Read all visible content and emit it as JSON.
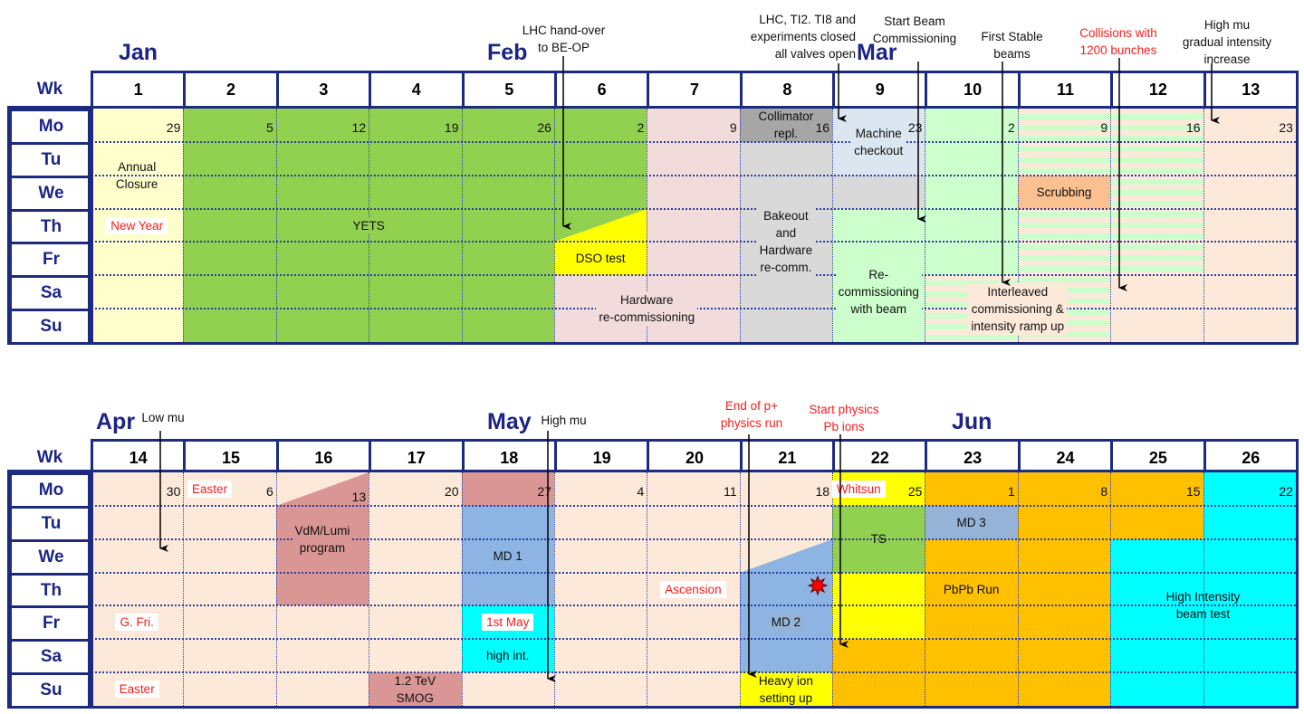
{
  "day_labels": [
    "Mo",
    "Tu",
    "We",
    "Th",
    "Fr",
    "Sa",
    "Su"
  ],
  "week_label": "Wk",
  "colors": {
    "navy": "#1c2a80",
    "annual_closure": "#ffffcc",
    "yets": "#92d050",
    "dso_test": "#ffff00",
    "hardware_recommissioning": "#f2dcdb",
    "collimator": "#a6a6a6",
    "bakeout": "#d9d9d9",
    "machine_checkout": "#dce6f1",
    "recommissioning_beam": "#ccffcc",
    "physics": "#fde9d9",
    "scrubbing": "#fac090",
    "special_run": "#da9694",
    "md": "#8db4e2",
    "md3": "#95b3d7",
    "high_intensity": "#00ffff",
    "ion_run": "#ffc000",
    "ts": "#92d050",
    "holiday_text": "#ff1a1a"
  },
  "calendars": [
    {
      "months": [
        {
          "label": "Jan"
        },
        {
          "label": "Feb"
        },
        {
          "label": "Mar"
        }
      ],
      "weeks": [
        "1",
        "2",
        "3",
        "4",
        "5",
        "6",
        "7",
        "8",
        "9",
        "10",
        "11",
        "12",
        "13"
      ],
      "monday_dates": [
        "29",
        "5",
        "12",
        "19",
        "26",
        "2",
        "9",
        "16",
        "23",
        "2",
        "9",
        "16",
        "23"
      ],
      "blocks": [
        {
          "w": [
            1,
            1
          ],
          "d": [
            0,
            6
          ],
          "color": "#ffffcc"
        },
        {
          "w": [
            2,
            5
          ],
          "d": [
            0,
            6
          ],
          "color": "#92d050"
        },
        {
          "w": [
            6,
            6
          ],
          "d": [
            0,
            2
          ],
          "color": "#92d050"
        },
        {
          "w": [
            6,
            6
          ],
          "d": [
            3,
            3
          ],
          "color": "#92d050",
          "triangle": "#ffff00"
        },
        {
          "w": [
            6,
            6
          ],
          "d": [
            4,
            4
          ],
          "color": "#ffff00"
        },
        {
          "w": [
            6,
            6
          ],
          "d": [
            5,
            6
          ],
          "color": "#f2dcdb"
        },
        {
          "w": [
            7,
            7
          ],
          "d": [
            0,
            6
          ],
          "color": "#f2dcdb"
        },
        {
          "w": [
            8,
            8
          ],
          "d": [
            0,
            0
          ],
          "color": "#a6a6a6"
        },
        {
          "w": [
            8,
            8
          ],
          "d": [
            1,
            6
          ],
          "color": "#d9d9d9"
        },
        {
          "w": [
            9,
            9
          ],
          "d": [
            0,
            1
          ],
          "color": "#dce6f1"
        },
        {
          "w": [
            9,
            9
          ],
          "d": [
            2,
            2
          ],
          "color": "#d9d9d9"
        },
        {
          "w": [
            9,
            9
          ],
          "d": [
            3,
            6
          ],
          "color": "#ccffcc"
        },
        {
          "w": [
            10,
            10
          ],
          "d": [
            0,
            4
          ],
          "color": "#ccffcc"
        },
        {
          "w": [
            10,
            10
          ],
          "d": [
            5,
            6
          ],
          "color": "#fde9d9",
          "stripes": "#ccffcc"
        },
        {
          "w": [
            11,
            11
          ],
          "d": [
            0,
            6
          ],
          "color": "#fde9d9",
          "stripes": "#ccffcc"
        },
        {
          "w": [
            12,
            12
          ],
          "d": [
            0,
            4
          ],
          "color": "#fde9d9",
          "stripes": "#ccffcc"
        },
        {
          "w": [
            11,
            11
          ],
          "d": [
            2,
            2
          ],
          "color": "#fac090"
        },
        {
          "w": [
            12,
            12
          ],
          "d": [
            5,
            6
          ],
          "color": "#fde9d9"
        },
        {
          "w": [
            13,
            13
          ],
          "d": [
            0,
            6
          ],
          "color": "#fde9d9"
        }
      ],
      "labels": [
        {
          "text": "Annual\nClosure",
          "w": [
            1,
            1
          ],
          "d": [
            1,
            2
          ]
        },
        {
          "text": "YETS",
          "w": [
            2,
            5
          ],
          "d": [
            3,
            3
          ],
          "bg": "#92d050"
        },
        {
          "text": "DSO test",
          "w": [
            6,
            6
          ],
          "d": [
            4,
            4
          ]
        },
        {
          "text": "Hardware\nre-commissioning",
          "w": [
            6,
            7
          ],
          "d": [
            5,
            6
          ],
          "bg": "#f2dcdb"
        },
        {
          "text": "Collimator\nrepl.",
          "w": [
            8,
            8
          ],
          "d": [
            0,
            0
          ]
        },
        {
          "text": "Bakeout\nand\nHardware\nre-comm.",
          "w": [
            8,
            8
          ],
          "d": [
            3,
            4
          ],
          "bg": "#d9d9d9"
        },
        {
          "text": "Machine\ncheckout",
          "w": [
            9,
            9
          ],
          "d": [
            0,
            1
          ],
          "bg": "#dce6f1"
        },
        {
          "text": "Re-\ncommissioning\nwith beam",
          "w": [
            9,
            9
          ],
          "d": [
            4,
            6
          ],
          "bg": "#ccffcc"
        },
        {
          "text": "Scrubbing",
          "w": [
            11,
            11
          ],
          "d": [
            2,
            2
          ]
        },
        {
          "text": "Interleaved\ncommissioning &\nintensity ramp up",
          "w": [
            10,
            11
          ],
          "d": [
            5,
            6
          ],
          "bg": "#fde9d9"
        }
      ],
      "holidays": [
        {
          "text": "New Year",
          "w": 1,
          "d": 3
        }
      ],
      "annotations": [
        {
          "text": "LHC hand-over\nto BE-OP",
          "color": "black"
        },
        {
          "text": "LHC, TI2. TI8 and\nexperiments closed\nall valves open",
          "color": "black"
        },
        {
          "text": "Start Beam\nCommissioning",
          "color": "black"
        },
        {
          "text": "First Stable\nbeams",
          "color": "black"
        },
        {
          "text": "Collisions with\n1200 bunches",
          "color": "red"
        },
        {
          "text": "High mu\ngradual intensity\nincrease",
          "color": "black"
        }
      ]
    },
    {
      "months": [
        {
          "label": "Apr"
        },
        {
          "label": "May"
        },
        {
          "label": "Jun"
        }
      ],
      "weeks": [
        "14",
        "15",
        "16",
        "17",
        "18",
        "19",
        "20",
        "21",
        "22",
        "23",
        "24",
        "25",
        "26"
      ],
      "monday_dates": [
        "30",
        "6",
        "13",
        "20",
        "27",
        "4",
        "11",
        "18",
        "25",
        "1",
        "8",
        "15",
        "22"
      ],
      "blocks": [
        {
          "w": [
            14,
            26
          ],
          "d": [
            0,
            6
          ],
          "color": "#fde9d9"
        },
        {
          "w": [
            16,
            16
          ],
          "d": [
            0,
            0
          ],
          "color": "#fde9d9",
          "triangle": "#da9694"
        },
        {
          "w": [
            16,
            16
          ],
          "d": [
            1,
            3
          ],
          "color": "#da9694"
        },
        {
          "w": [
            17,
            17
          ],
          "d": [
            6,
            6
          ],
          "color": "#da9694"
        },
        {
          "w": [
            18,
            18
          ],
          "d": [
            0,
            0
          ],
          "color": "#da9694"
        },
        {
          "w": [
            18,
            18
          ],
          "d": [
            1,
            3
          ],
          "color": "#8db4e2"
        },
        {
          "w": [
            18,
            18
          ],
          "d": [
            4,
            5
          ],
          "color": "#00ffff"
        },
        {
          "w": [
            21,
            21
          ],
          "d": [
            2,
            2
          ],
          "color": "#fde9d9",
          "triangle": "#8db4e2"
        },
        {
          "w": [
            21,
            21
          ],
          "d": [
            3,
            5
          ],
          "color": "#8db4e2"
        },
        {
          "w": [
            21,
            21
          ],
          "d": [
            6,
            6
          ],
          "color": "#ffff00"
        },
        {
          "w": [
            22,
            22
          ],
          "d": [
            0,
            0
          ],
          "color": "#ffff00"
        },
        {
          "w": [
            22,
            22
          ],
          "d": [
            1,
            2
          ],
          "color": "#92d050"
        },
        {
          "w": [
            22,
            22
          ],
          "d": [
            3,
            4
          ],
          "color": "#ffff00"
        },
        {
          "w": [
            22,
            22
          ],
          "d": [
            5,
            6
          ],
          "color": "#ffc000"
        },
        {
          "w": [
            23,
            23
          ],
          "d": [
            0,
            0
          ],
          "color": "#ffc000"
        },
        {
          "w": [
            23,
            23
          ],
          "d": [
            1,
            1
          ],
          "color": "#95b3d7"
        },
        {
          "w": [
            23,
            23
          ],
          "d": [
            2,
            6
          ],
          "color": "#ffc000"
        },
        {
          "w": [
            24,
            24
          ],
          "d": [
            0,
            6
          ],
          "color": "#ffc000"
        },
        {
          "w": [
            25,
            25
          ],
          "d": [
            0,
            1
          ],
          "color": "#ffc000"
        },
        {
          "w": [
            25,
            25
          ],
          "d": [
            2,
            6
          ],
          "color": "#00ffff"
        },
        {
          "w": [
            26,
            26
          ],
          "d": [
            0,
            6
          ],
          "color": "#00ffff"
        }
      ],
      "labels": [
        {
          "text": "VdM/Lumi\nprogram",
          "w": [
            16,
            16
          ],
          "d": [
            1,
            2
          ],
          "bg": "#da9694"
        },
        {
          "text": "MD 1",
          "w": [
            18,
            18
          ],
          "d": [
            2,
            2
          ]
        },
        {
          "text": "high int.",
          "w": [
            18,
            18
          ],
          "d": [
            5,
            5
          ]
        },
        {
          "text": "1.2 TeV\nSMOG",
          "w": [
            17,
            17
          ],
          "d": [
            6,
            6
          ]
        },
        {
          "text": "MD 2",
          "w": [
            21,
            21
          ],
          "d": [
            4,
            4
          ],
          "bg": "#95b3d7"
        },
        {
          "text": "Heavy ion\nsetting up",
          "w": [
            21,
            21
          ],
          "d": [
            6,
            6
          ]
        },
        {
          "text": "TS",
          "w": [
            22,
            22
          ],
          "d": [
            1,
            2
          ]
        },
        {
          "text": "MD 3",
          "w": [
            23,
            23
          ],
          "d": [
            1,
            1
          ]
        },
        {
          "text": "PbPb Run",
          "w": [
            23,
            23
          ],
          "d": [
            3,
            3
          ]
        },
        {
          "text": "High Intensity\nbeam test",
          "w": [
            25,
            26
          ],
          "d": [
            3,
            4
          ]
        }
      ],
      "holidays": [
        {
          "text": "Easter",
          "w": 15,
          "d": 0
        },
        {
          "text": "G. Fri.",
          "w": 14,
          "d": 4
        },
        {
          "text": "Easter",
          "w": 14,
          "d": 6
        },
        {
          "text": "1st  May",
          "w": 18,
          "d": 4
        },
        {
          "text": "Ascension",
          "w": 20,
          "d": 3
        },
        {
          "text": "Whitsun",
          "w": 22,
          "d": 0
        }
      ],
      "annotations": [
        {
          "text": "Low mu",
          "color": "black"
        },
        {
          "text": "High mu",
          "color": "black"
        },
        {
          "text": "End of p+\nphysics run",
          "color": "red"
        },
        {
          "text": "Start physics\nPb ions",
          "color": "red"
        }
      ]
    }
  ]
}
